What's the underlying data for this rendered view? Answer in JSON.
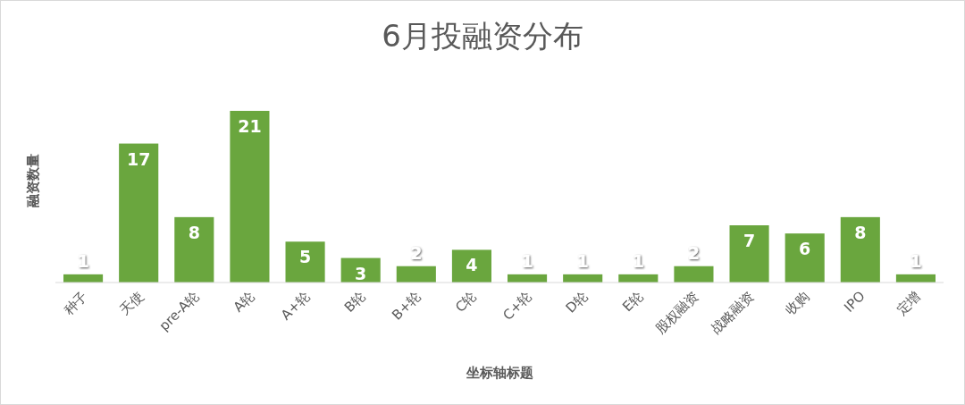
{
  "chart_data": {
    "type": "bar",
    "title": "6月投融资分布",
    "xlabel": "坐标轴标题",
    "ylabel": "融资数量",
    "categories": [
      "种子",
      "天使",
      "pre-A轮",
      "A轮",
      "A+轮",
      "B轮",
      "B+轮",
      "C轮",
      "C+轮",
      "D轮",
      "E轮",
      "股权融资",
      "战略融资",
      "收购",
      "IPO",
      "定增"
    ],
    "values": [
      1,
      17,
      8,
      21,
      5,
      3,
      2,
      4,
      1,
      1,
      1,
      2,
      7,
      6,
      8,
      1
    ],
    "color": "#6aa63e",
    "data_labels": true,
    "grid": false
  }
}
